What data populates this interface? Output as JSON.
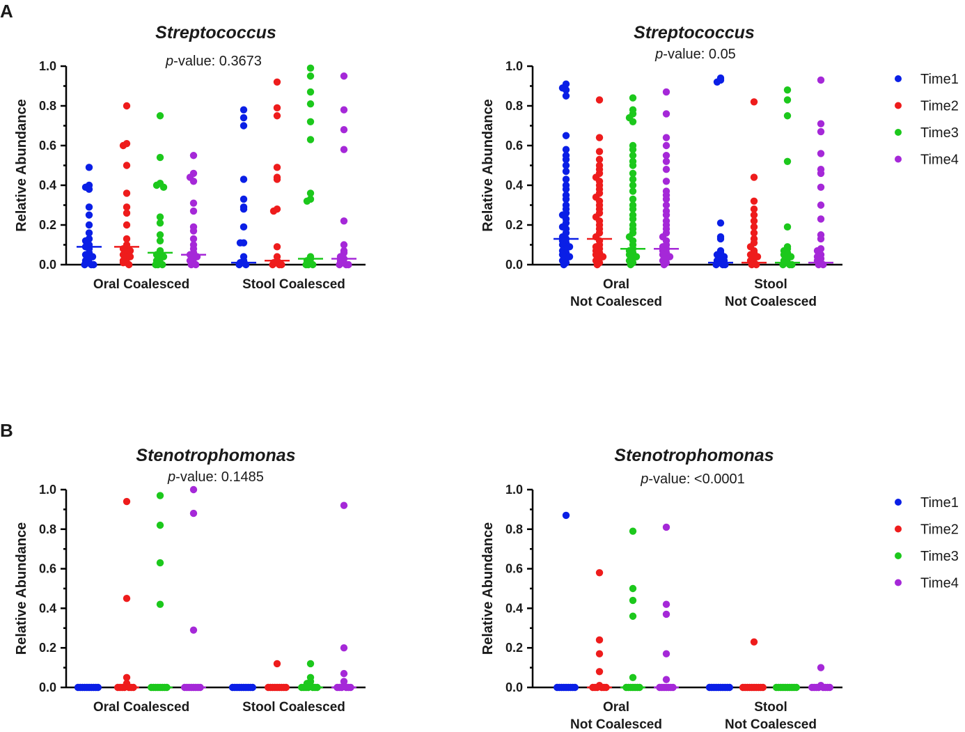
{
  "figure": {
    "panel_labels": [
      "A",
      "B"
    ],
    "p_prefix": "p"
  },
  "legend": {
    "items": [
      {
        "label": "Time1",
        "color": "#0a1fe6"
      },
      {
        "label": "Time2",
        "color": "#ee1c1c"
      },
      {
        "label": "Time3",
        "color": "#1cc81c"
      },
      {
        "label": "Time4",
        "color": "#a528d8"
      }
    ]
  },
  "chart_data": [
    {
      "type": "scatter",
      "panel": "A",
      "title": "Streptococcus",
      "pvalue_text": "-value: 0.3673",
      "ylabel": "Relative Abundance",
      "ylim": [
        0,
        1.0
      ],
      "yticks": [
        "0.0",
        "0.2",
        "0.4",
        "0.6",
        "0.8",
        "1.0"
      ],
      "groups": [
        {
          "label": [
            "Oral Coalesced"
          ],
          "series": [
            {
              "name": "Time1",
              "median": 0.09,
              "values": [
                0.49,
                0.4,
                0.39,
                0.38,
                0.29,
                0.25,
                0.2,
                0.16,
                0.13,
                0.12,
                0.1,
                0.09,
                0.08,
                0.06,
                0.05,
                0.04,
                0.03,
                0.02,
                0.01,
                0.01,
                0.0,
                0.0,
                0.0
              ]
            },
            {
              "name": "Time2",
              "median": 0.09,
              "values": [
                0.8,
                0.61,
                0.6,
                0.5,
                0.36,
                0.29,
                0.26,
                0.2,
                0.13,
                0.1,
                0.08,
                0.08,
                0.07,
                0.06,
                0.05,
                0.04,
                0.03,
                0.02,
                0.01,
                0.01,
                0.0
              ]
            },
            {
              "name": "Time3",
              "median": 0.06,
              "values": [
                0.75,
                0.54,
                0.41,
                0.4,
                0.39,
                0.24,
                0.21,
                0.15,
                0.12,
                0.07,
                0.06,
                0.05,
                0.04,
                0.03,
                0.02,
                0.01,
                0.0,
                0.0,
                0.0
              ]
            },
            {
              "name": "Time4",
              "median": 0.05,
              "values": [
                0.55,
                0.46,
                0.44,
                0.42,
                0.31,
                0.27,
                0.19,
                0.17,
                0.13,
                0.1,
                0.08,
                0.06,
                0.05,
                0.04,
                0.03,
                0.02,
                0.01,
                0.0,
                0.0
              ]
            }
          ]
        },
        {
          "label": [
            "Stool Coalesced"
          ],
          "series": [
            {
              "name": "Time1",
              "median": 0.01,
              "values": [
                0.78,
                0.74,
                0.7,
                0.43,
                0.33,
                0.29,
                0.28,
                0.19,
                0.11,
                0.11,
                0.04,
                0.02,
                0.01,
                0.01,
                0.0,
                0.0
              ]
            },
            {
              "name": "Time2",
              "median": 0.02,
              "values": [
                0.92,
                0.79,
                0.75,
                0.49,
                0.44,
                0.43,
                0.28,
                0.27,
                0.09,
                0.04,
                0.02,
                0.01,
                0.01,
                0.0,
                0.0,
                0.0
              ]
            },
            {
              "name": "Time3",
              "median": 0.03,
              "values": [
                0.99,
                0.95,
                0.87,
                0.81,
                0.72,
                0.63,
                0.36,
                0.33,
                0.32,
                0.04,
                0.03,
                0.02,
                0.01,
                0.0,
                0.0,
                0.0
              ]
            },
            {
              "name": "Time4",
              "median": 0.03,
              "values": [
                0.95,
                0.78,
                0.68,
                0.58,
                0.22,
                0.1,
                0.07,
                0.06,
                0.04,
                0.03,
                0.02,
                0.01,
                0.01,
                0.0,
                0.0,
                0.0
              ]
            }
          ]
        }
      ]
    },
    {
      "type": "scatter",
      "panel": "A",
      "title": "Streptococcus",
      "pvalue_text": "-value: 0.05",
      "ylabel": "Relative Abundance",
      "ylim": [
        0,
        1.0
      ],
      "yticks": [
        "0.0",
        "0.2",
        "0.4",
        "0.6",
        "0.8",
        "1.0"
      ],
      "groups": [
        {
          "label": [
            "Oral",
            "Not Coalesced"
          ],
          "series": [
            {
              "name": "Time1",
              "median": 0.13,
              "values": [
                0.91,
                0.89,
                0.88,
                0.85,
                0.65,
                0.58,
                0.55,
                0.53,
                0.5,
                0.47,
                0.43,
                0.4,
                0.38,
                0.35,
                0.33,
                0.3,
                0.28,
                0.26,
                0.25,
                0.23,
                0.21,
                0.19,
                0.18,
                0.16,
                0.14,
                0.13,
                0.12,
                0.11,
                0.1,
                0.09,
                0.08,
                0.07,
                0.06,
                0.05,
                0.04,
                0.03,
                0.02,
                0.01,
                0.0
              ]
            },
            {
              "name": "Time2",
              "median": 0.13,
              "values": [
                0.83,
                0.64,
                0.57,
                0.53,
                0.5,
                0.48,
                0.46,
                0.44,
                0.42,
                0.4,
                0.38,
                0.36,
                0.34,
                0.32,
                0.3,
                0.28,
                0.26,
                0.24,
                0.22,
                0.2,
                0.18,
                0.16,
                0.14,
                0.12,
                0.1,
                0.09,
                0.08,
                0.07,
                0.06,
                0.05,
                0.04,
                0.03,
                0.02,
                0.01,
                0.0
              ]
            },
            {
              "name": "Time3",
              "median": 0.08,
              "values": [
                0.84,
                0.78,
                0.76,
                0.74,
                0.72,
                0.6,
                0.58,
                0.55,
                0.52,
                0.5,
                0.46,
                0.43,
                0.4,
                0.37,
                0.33,
                0.3,
                0.28,
                0.25,
                0.23,
                0.2,
                0.18,
                0.16,
                0.14,
                0.12,
                0.1,
                0.08,
                0.07,
                0.06,
                0.05,
                0.04,
                0.03,
                0.02,
                0.01,
                0.0
              ]
            },
            {
              "name": "Time4",
              "median": 0.08,
              "values": [
                0.87,
                0.76,
                0.64,
                0.6,
                0.55,
                0.52,
                0.48,
                0.42,
                0.37,
                0.35,
                0.33,
                0.3,
                0.27,
                0.25,
                0.22,
                0.2,
                0.18,
                0.16,
                0.14,
                0.12,
                0.1,
                0.09,
                0.08,
                0.07,
                0.06,
                0.05,
                0.04,
                0.03,
                0.02,
                0.01,
                0.0
              ]
            }
          ]
        },
        {
          "label": [
            "Stool",
            "Not Coalesced"
          ],
          "series": [
            {
              "name": "Time1",
              "median": 0.01,
              "values": [
                0.94,
                0.93,
                0.92,
                0.21,
                0.14,
                0.13,
                0.07,
                0.06,
                0.05,
                0.04,
                0.03,
                0.02,
                0.02,
                0.01,
                0.01,
                0.0,
                0.0,
                0.0
              ]
            },
            {
              "name": "Time2",
              "median": 0.01,
              "values": [
                0.82,
                0.44,
                0.32,
                0.28,
                0.25,
                0.22,
                0.19,
                0.16,
                0.13,
                0.11,
                0.09,
                0.07,
                0.06,
                0.05,
                0.04,
                0.03,
                0.02,
                0.01,
                0.0,
                0.0
              ]
            },
            {
              "name": "Time3",
              "median": 0.01,
              "values": [
                0.88,
                0.83,
                0.75,
                0.52,
                0.19,
                0.09,
                0.08,
                0.07,
                0.06,
                0.05,
                0.04,
                0.03,
                0.02,
                0.01,
                0.01,
                0.0,
                0.0,
                0.0
              ]
            },
            {
              "name": "Time4",
              "median": 0.01,
              "values": [
                0.93,
                0.71,
                0.67,
                0.56,
                0.48,
                0.46,
                0.39,
                0.3,
                0.23,
                0.15,
                0.13,
                0.08,
                0.07,
                0.05,
                0.04,
                0.03,
                0.02,
                0.01,
                0.0,
                0.0
              ]
            }
          ]
        }
      ]
    },
    {
      "type": "scatter",
      "panel": "B",
      "title": "Stenotrophomonas",
      "pvalue_text": "-value: 0.1485",
      "ylabel": "Relative Abundance",
      "ylim": [
        0,
        1.0
      ],
      "yticks": [
        "0.0",
        "0.2",
        "0.4",
        "0.6",
        "0.8",
        "1.0"
      ],
      "groups": [
        {
          "label": [
            "Oral Coalesced"
          ],
          "series": [
            {
              "name": "Time1",
              "median": 0.0,
              "values": [
                0.0,
                0.0,
                0.0,
                0.0,
                0.0,
                0.0,
                0.0,
                0.0,
                0.0,
                0.0
              ]
            },
            {
              "name": "Time2",
              "median": 0.0,
              "values": [
                0.94,
                0.45,
                0.05,
                0.02,
                0.01,
                0.0,
                0.0,
                0.0,
                0.0,
                0.0,
                0.0,
                0.0
              ]
            },
            {
              "name": "Time3",
              "median": 0.0,
              "values": [
                0.97,
                0.82,
                0.63,
                0.42,
                0.0,
                0.0,
                0.0,
                0.0,
                0.0,
                0.0,
                0.0,
                0.0
              ]
            },
            {
              "name": "Time4",
              "median": 0.0,
              "values": [
                1.0,
                0.88,
                0.29,
                0.0,
                0.0,
                0.0,
                0.0,
                0.0,
                0.0,
                0.0,
                0.0
              ]
            }
          ]
        },
        {
          "label": [
            "Stool Coalesced"
          ],
          "series": [
            {
              "name": "Time1",
              "median": 0.0,
              "values": [
                0.0,
                0.0,
                0.0,
                0.0,
                0.0,
                0.0,
                0.0,
                0.0,
                0.0,
                0.0
              ]
            },
            {
              "name": "Time2",
              "median": 0.0,
              "values": [
                0.12,
                0.0,
                0.0,
                0.0,
                0.0,
                0.0,
                0.0,
                0.0,
                0.0,
                0.0
              ]
            },
            {
              "name": "Time3",
              "median": 0.0,
              "values": [
                0.12,
                0.05,
                0.03,
                0.02,
                0.01,
                0.0,
                0.0,
                0.0,
                0.0,
                0.0,
                0.0,
                0.0
              ]
            },
            {
              "name": "Time4",
              "median": 0.0,
              "values": [
                0.92,
                0.2,
                0.07,
                0.03,
                0.01,
                0.0,
                0.0,
                0.0,
                0.0,
                0.0,
                0.0
              ]
            }
          ]
        }
      ]
    },
    {
      "type": "scatter",
      "panel": "B",
      "title": "Stenotrophomonas",
      "pvalue_text": "-value: <0.0001",
      "ylabel": "Relative Abundance",
      "ylim": [
        0,
        1.0
      ],
      "yticks": [
        "0.0",
        "0.2",
        "0.4",
        "0.6",
        "0.8",
        "1.0"
      ],
      "groups": [
        {
          "label": [
            "Oral",
            "Not Coalesced"
          ],
          "series": [
            {
              "name": "Time1",
              "median": 0.0,
              "values": [
                0.87,
                0.0,
                0.0,
                0.0,
                0.0,
                0.0,
                0.0,
                0.0,
                0.0,
                0.0
              ]
            },
            {
              "name": "Time2",
              "median": 0.0,
              "values": [
                0.58,
                0.24,
                0.17,
                0.08,
                0.01,
                0.0,
                0.0,
                0.0,
                0.0,
                0.0,
                0.0
              ]
            },
            {
              "name": "Time3",
              "median": 0.0,
              "values": [
                0.79,
                0.5,
                0.44,
                0.36,
                0.05,
                0.0,
                0.0,
                0.0,
                0.0,
                0.0,
                0.0,
                0.0
              ]
            },
            {
              "name": "Time4",
              "median": 0.0,
              "values": [
                0.81,
                0.42,
                0.37,
                0.17,
                0.04,
                0.0,
                0.0,
                0.0,
                0.0,
                0.0,
                0.0,
                0.0
              ]
            }
          ]
        },
        {
          "label": [
            "Stool",
            "Not Coalesced"
          ],
          "series": [
            {
              "name": "Time1",
              "median": 0.0,
              "values": [
                0.0,
                0.0,
                0.0,
                0.0,
                0.0,
                0.0,
                0.0,
                0.0,
                0.0,
                0.0
              ]
            },
            {
              "name": "Time2",
              "median": 0.0,
              "values": [
                0.23,
                0.0,
                0.0,
                0.0,
                0.0,
                0.0,
                0.0,
                0.0,
                0.0,
                0.0,
                0.0
              ]
            },
            {
              "name": "Time3",
              "median": 0.0,
              "values": [
                0.0,
                0.0,
                0.0,
                0.0,
                0.0,
                0.0,
                0.0,
                0.0,
                0.0,
                0.0
              ]
            },
            {
              "name": "Time4",
              "median": 0.0,
              "values": [
                0.1,
                0.01,
                0.0,
                0.0,
                0.0,
                0.0,
                0.0,
                0.0,
                0.0,
                0.0
              ]
            }
          ]
        }
      ]
    }
  ]
}
